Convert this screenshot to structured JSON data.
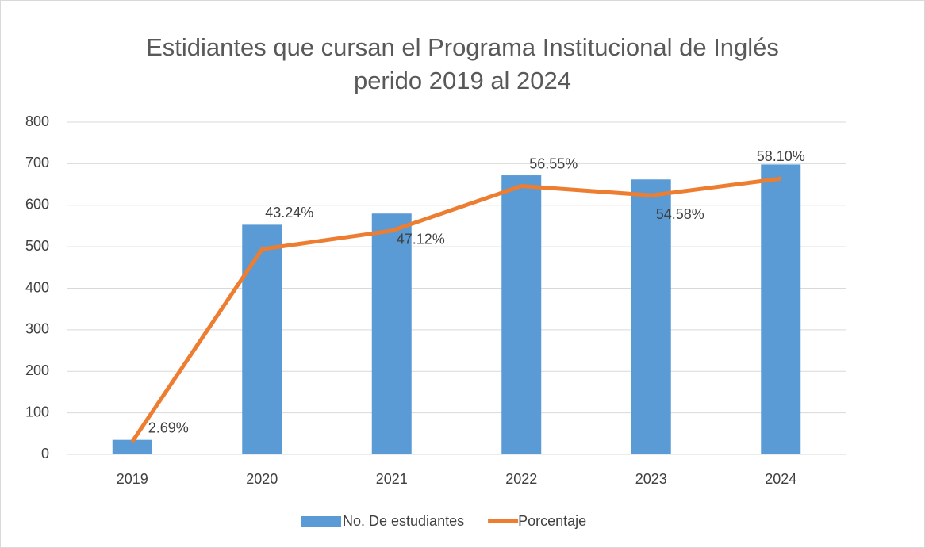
{
  "chart_data": {
    "type": "bar_line",
    "title": [
      "Estidiantes que cursan el Programa Institucional de Inglés",
      "perido 2019 al 2024"
    ],
    "categories": [
      "2019",
      "2020",
      "2021",
      "2022",
      "2023",
      "2024"
    ],
    "series": [
      {
        "name": "No. De estudiantes",
        "type": "bar",
        "color": "#5b9bd5",
        "values": [
          35,
          553,
          580,
          672,
          662,
          698
        ]
      },
      {
        "name": "Porcentaje",
        "type": "line",
        "axis": "y2",
        "color": "#ed7d31",
        "values": [
          2.69,
          43.24,
          47.12,
          56.55,
          54.58,
          58.1
        ],
        "value_labels": [
          "2.69%",
          "43.24%",
          "47.12%",
          "56.55%",
          "54.58%",
          "58.10%"
        ]
      }
    ],
    "ylim": [
      0,
      800
    ],
    "yticks": [
      0,
      100,
      200,
      300,
      400,
      500,
      600,
      700,
      800
    ],
    "y2lim": [
      0,
      70
    ],
    "grid": true,
    "legend": "bottom"
  }
}
